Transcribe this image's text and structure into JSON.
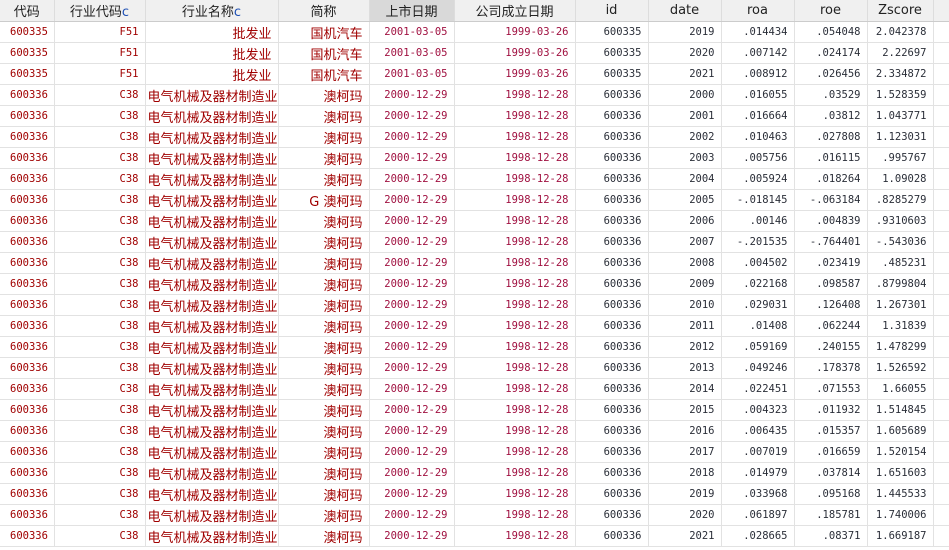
{
  "headers": [
    {
      "label": "代码",
      "suffix": ""
    },
    {
      "label": "行业代码",
      "suffix": "c"
    },
    {
      "label": "行业名称",
      "suffix": "c"
    },
    {
      "label": "简称",
      "suffix": ""
    },
    {
      "label": "上市日期",
      "suffix": "",
      "selected": true
    },
    {
      "label": "公司成立日期",
      "suffix": ""
    },
    {
      "label": "id",
      "suffix": ""
    },
    {
      "label": "date",
      "suffix": ""
    },
    {
      "label": "roa",
      "suffix": ""
    },
    {
      "label": "roe",
      "suffix": ""
    },
    {
      "label": "Zscore",
      "suffix": ""
    },
    {
      "label": "",
      "suffix": ""
    }
  ],
  "rows": [
    [
      "600335",
      "F51",
      "批发业",
      "国机汽车",
      "2001-03-05",
      "1999-03-26",
      "600335",
      "2019",
      ".014434",
      ".054048",
      "2.042378"
    ],
    [
      "600335",
      "F51",
      "批发业",
      "国机汽车",
      "2001-03-05",
      "1999-03-26",
      "600335",
      "2020",
      ".007142",
      ".024174",
      "2.22697"
    ],
    [
      "600335",
      "F51",
      "批发业",
      "国机汽车",
      "2001-03-05",
      "1999-03-26",
      "600335",
      "2021",
      ".008912",
      ".026456",
      "2.334872"
    ],
    [
      "600336",
      "C38",
      "电气机械及器材制造业",
      "澳柯玛",
      "2000-12-29",
      "1998-12-28",
      "600336",
      "2000",
      ".016055",
      ".03529",
      "1.528359"
    ],
    [
      "600336",
      "C38",
      "电气机械及器材制造业",
      "澳柯玛",
      "2000-12-29",
      "1998-12-28",
      "600336",
      "2001",
      ".016664",
      ".03812",
      "1.043771"
    ],
    [
      "600336",
      "C38",
      "电气机械及器材制造业",
      "澳柯玛",
      "2000-12-29",
      "1998-12-28",
      "600336",
      "2002",
      ".010463",
      ".027808",
      "1.123031"
    ],
    [
      "600336",
      "C38",
      "电气机械及器材制造业",
      "澳柯玛",
      "2000-12-29",
      "1998-12-28",
      "600336",
      "2003",
      ".005756",
      ".016115",
      ".995767"
    ],
    [
      "600336",
      "C38",
      "电气机械及器材制造业",
      "澳柯玛",
      "2000-12-29",
      "1998-12-28",
      "600336",
      "2004",
      ".005924",
      ".018264",
      "1.09028"
    ],
    [
      "600336",
      "C38",
      "电气机械及器材制造业",
      "G 澳柯玛",
      "2000-12-29",
      "1998-12-28",
      "600336",
      "2005",
      "-.018145",
      "-.063184",
      ".8285279"
    ],
    [
      "600336",
      "C38",
      "电气机械及器材制造业",
      "澳柯玛",
      "2000-12-29",
      "1998-12-28",
      "600336",
      "2006",
      ".00146",
      ".004839",
      ".9310603"
    ],
    [
      "600336",
      "C38",
      "电气机械及器材制造业",
      "澳柯玛",
      "2000-12-29",
      "1998-12-28",
      "600336",
      "2007",
      "-.201535",
      "-.764401",
      "-.543036"
    ],
    [
      "600336",
      "C38",
      "电气机械及器材制造业",
      "澳柯玛",
      "2000-12-29",
      "1998-12-28",
      "600336",
      "2008",
      ".004502",
      ".023419",
      ".485231"
    ],
    [
      "600336",
      "C38",
      "电气机械及器材制造业",
      "澳柯玛",
      "2000-12-29",
      "1998-12-28",
      "600336",
      "2009",
      ".022168",
      ".098587",
      ".8799804"
    ],
    [
      "600336",
      "C38",
      "电气机械及器材制造业",
      "澳柯玛",
      "2000-12-29",
      "1998-12-28",
      "600336",
      "2010",
      ".029031",
      ".126408",
      "1.267301"
    ],
    [
      "600336",
      "C38",
      "电气机械及器材制造业",
      "澳柯玛",
      "2000-12-29",
      "1998-12-28",
      "600336",
      "2011",
      ".01408",
      ".062244",
      "1.31839"
    ],
    [
      "600336",
      "C38",
      "电气机械及器材制造业",
      "澳柯玛",
      "2000-12-29",
      "1998-12-28",
      "600336",
      "2012",
      ".059169",
      ".240155",
      "1.478299"
    ],
    [
      "600336",
      "C38",
      "电气机械及器材制造业",
      "澳柯玛",
      "2000-12-29",
      "1998-12-28",
      "600336",
      "2013",
      ".049246",
      ".178378",
      "1.526592"
    ],
    [
      "600336",
      "C38",
      "电气机械及器材制造业",
      "澳柯玛",
      "2000-12-29",
      "1998-12-28",
      "600336",
      "2014",
      ".022451",
      ".071553",
      "1.66055"
    ],
    [
      "600336",
      "C38",
      "电气机械及器材制造业",
      "澳柯玛",
      "2000-12-29",
      "1998-12-28",
      "600336",
      "2015",
      ".004323",
      ".011932",
      "1.514845"
    ],
    [
      "600336",
      "C38",
      "电气机械及器材制造业",
      "澳柯玛",
      "2000-12-29",
      "1998-12-28",
      "600336",
      "2016",
      ".006435",
      ".015357",
      "1.605689"
    ],
    [
      "600336",
      "C38",
      "电气机械及器材制造业",
      "澳柯玛",
      "2000-12-29",
      "1998-12-28",
      "600336",
      "2017",
      ".007019",
      ".016659",
      "1.520154"
    ],
    [
      "600336",
      "C38",
      "电气机械及器材制造业",
      "澳柯玛",
      "2000-12-29",
      "1998-12-28",
      "600336",
      "2018",
      ".014979",
      ".037814",
      "1.651603"
    ],
    [
      "600336",
      "C38",
      "电气机械及器材制造业",
      "澳柯玛",
      "2000-12-29",
      "1998-12-28",
      "600336",
      "2019",
      ".033968",
      ".095168",
      "1.445533"
    ],
    [
      "600336",
      "C38",
      "电气机械及器材制造业",
      "澳柯玛",
      "2000-12-29",
      "1998-12-28",
      "600336",
      "2020",
      ".061897",
      ".185781",
      "1.740006"
    ],
    [
      "600336",
      "C38",
      "电气机械及器材制造业",
      "澳柯玛",
      "2000-12-29",
      "1998-12-28",
      "600336",
      "2021",
      ".028665",
      ".08371",
      "1.669187"
    ]
  ]
}
